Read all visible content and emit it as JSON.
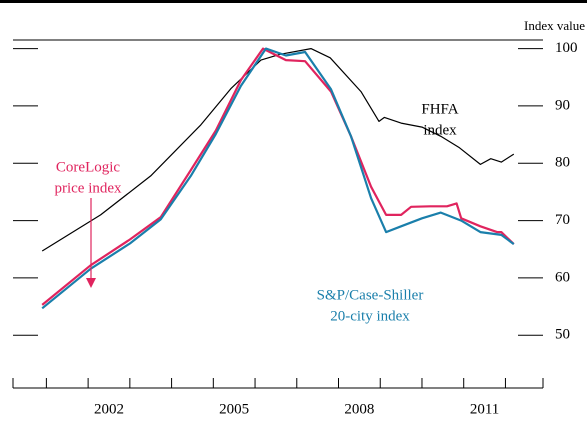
{
  "chart_data": {
    "type": "line",
    "y_axis_label": "Index value",
    "xlim": [
      2000.2,
      2012.9
    ],
    "xticks": [
      {
        "value": 2002.5,
        "label": "2002"
      },
      {
        "value": 2005.5,
        "label": "2005"
      },
      {
        "value": 2008.5,
        "label": "2008"
      },
      {
        "value": 2011.5,
        "label": "2011"
      }
    ],
    "xminorticks": [
      2000.2,
      2001,
      2002,
      2003,
      2004,
      2005,
      2006,
      2007,
      2008,
      2009,
      2010,
      2011,
      2012,
      2012.9
    ],
    "ylim": [
      40.8,
      101.5
    ],
    "yticks": [
      50,
      60,
      70,
      80,
      90,
      100
    ],
    "series": [
      {
        "name": "FHFA index",
        "color": "#000000",
        "x": [
          2000.9,
          2002.3,
          2003.5,
          2004.7,
          2005.42,
          2006.14,
          2006.6,
          2007.34,
          2007.8,
          2008.54,
          2008.97,
          2009.1,
          2009.5,
          2010.0,
          2010.45,
          2010.9,
          2011.4,
          2011.65,
          2011.9,
          2012.2
        ],
        "values": [
          64.7,
          71,
          77.8,
          86.7,
          93,
          98,
          99,
          100,
          98.4,
          92.5,
          87.3,
          88,
          87,
          86.3,
          84.7,
          82.7,
          79.8,
          80.8,
          80.2,
          81.6
        ]
      },
      {
        "name": "CoreLogic price index",
        "color": "#e0245e",
        "x": [
          2000.9,
          2002.06,
          2003.0,
          2003.74,
          2004.46,
          2005.06,
          2005.66,
          2006.19,
          2006.74,
          2007.2,
          2007.82,
          2008.3,
          2008.78,
          2009.14,
          2009.5,
          2009.74,
          2010.2,
          2010.6,
          2010.83,
          2010.94,
          2011.4,
          2011.8,
          2011.9,
          2012.2
        ],
        "values": [
          55.3,
          62.2,
          66.7,
          70.6,
          78.8,
          85.7,
          94.5,
          100,
          98,
          97.8,
          92.5,
          84.7,
          75.9,
          71,
          71,
          72.4,
          72.5,
          72.5,
          73,
          70.4,
          69,
          68,
          68,
          65.9
        ]
      },
      {
        "name": "S&P/Case-Shiller 20-city index",
        "color": "#1a7fab",
        "x": [
          2000.9,
          2002.06,
          2003.0,
          2003.74,
          2004.46,
          2005.06,
          2005.66,
          2006.26,
          2006.74,
          2007.2,
          2007.82,
          2008.3,
          2008.78,
          2009.14,
          2009.5,
          2010.0,
          2010.45,
          2010.94,
          2011.4,
          2011.9,
          2012.2
        ],
        "values": [
          54.7,
          61.6,
          66,
          70.2,
          77.8,
          85.1,
          93.5,
          100,
          98.8,
          99.4,
          92.9,
          84.7,
          73.9,
          68,
          69,
          70.4,
          71.4,
          70,
          68,
          67.5,
          65.9
        ]
      }
    ],
    "annotations": [
      {
        "lines": [
          "FHFA",
          "index"
        ],
        "color": "#000000"
      },
      {
        "lines": [
          "CoreLogic",
          "price index"
        ],
        "color": "#e0245e"
      },
      {
        "lines": [
          "S&P/Case-Shiller",
          "20-city index"
        ],
        "color": "#1a7fab"
      }
    ]
  }
}
